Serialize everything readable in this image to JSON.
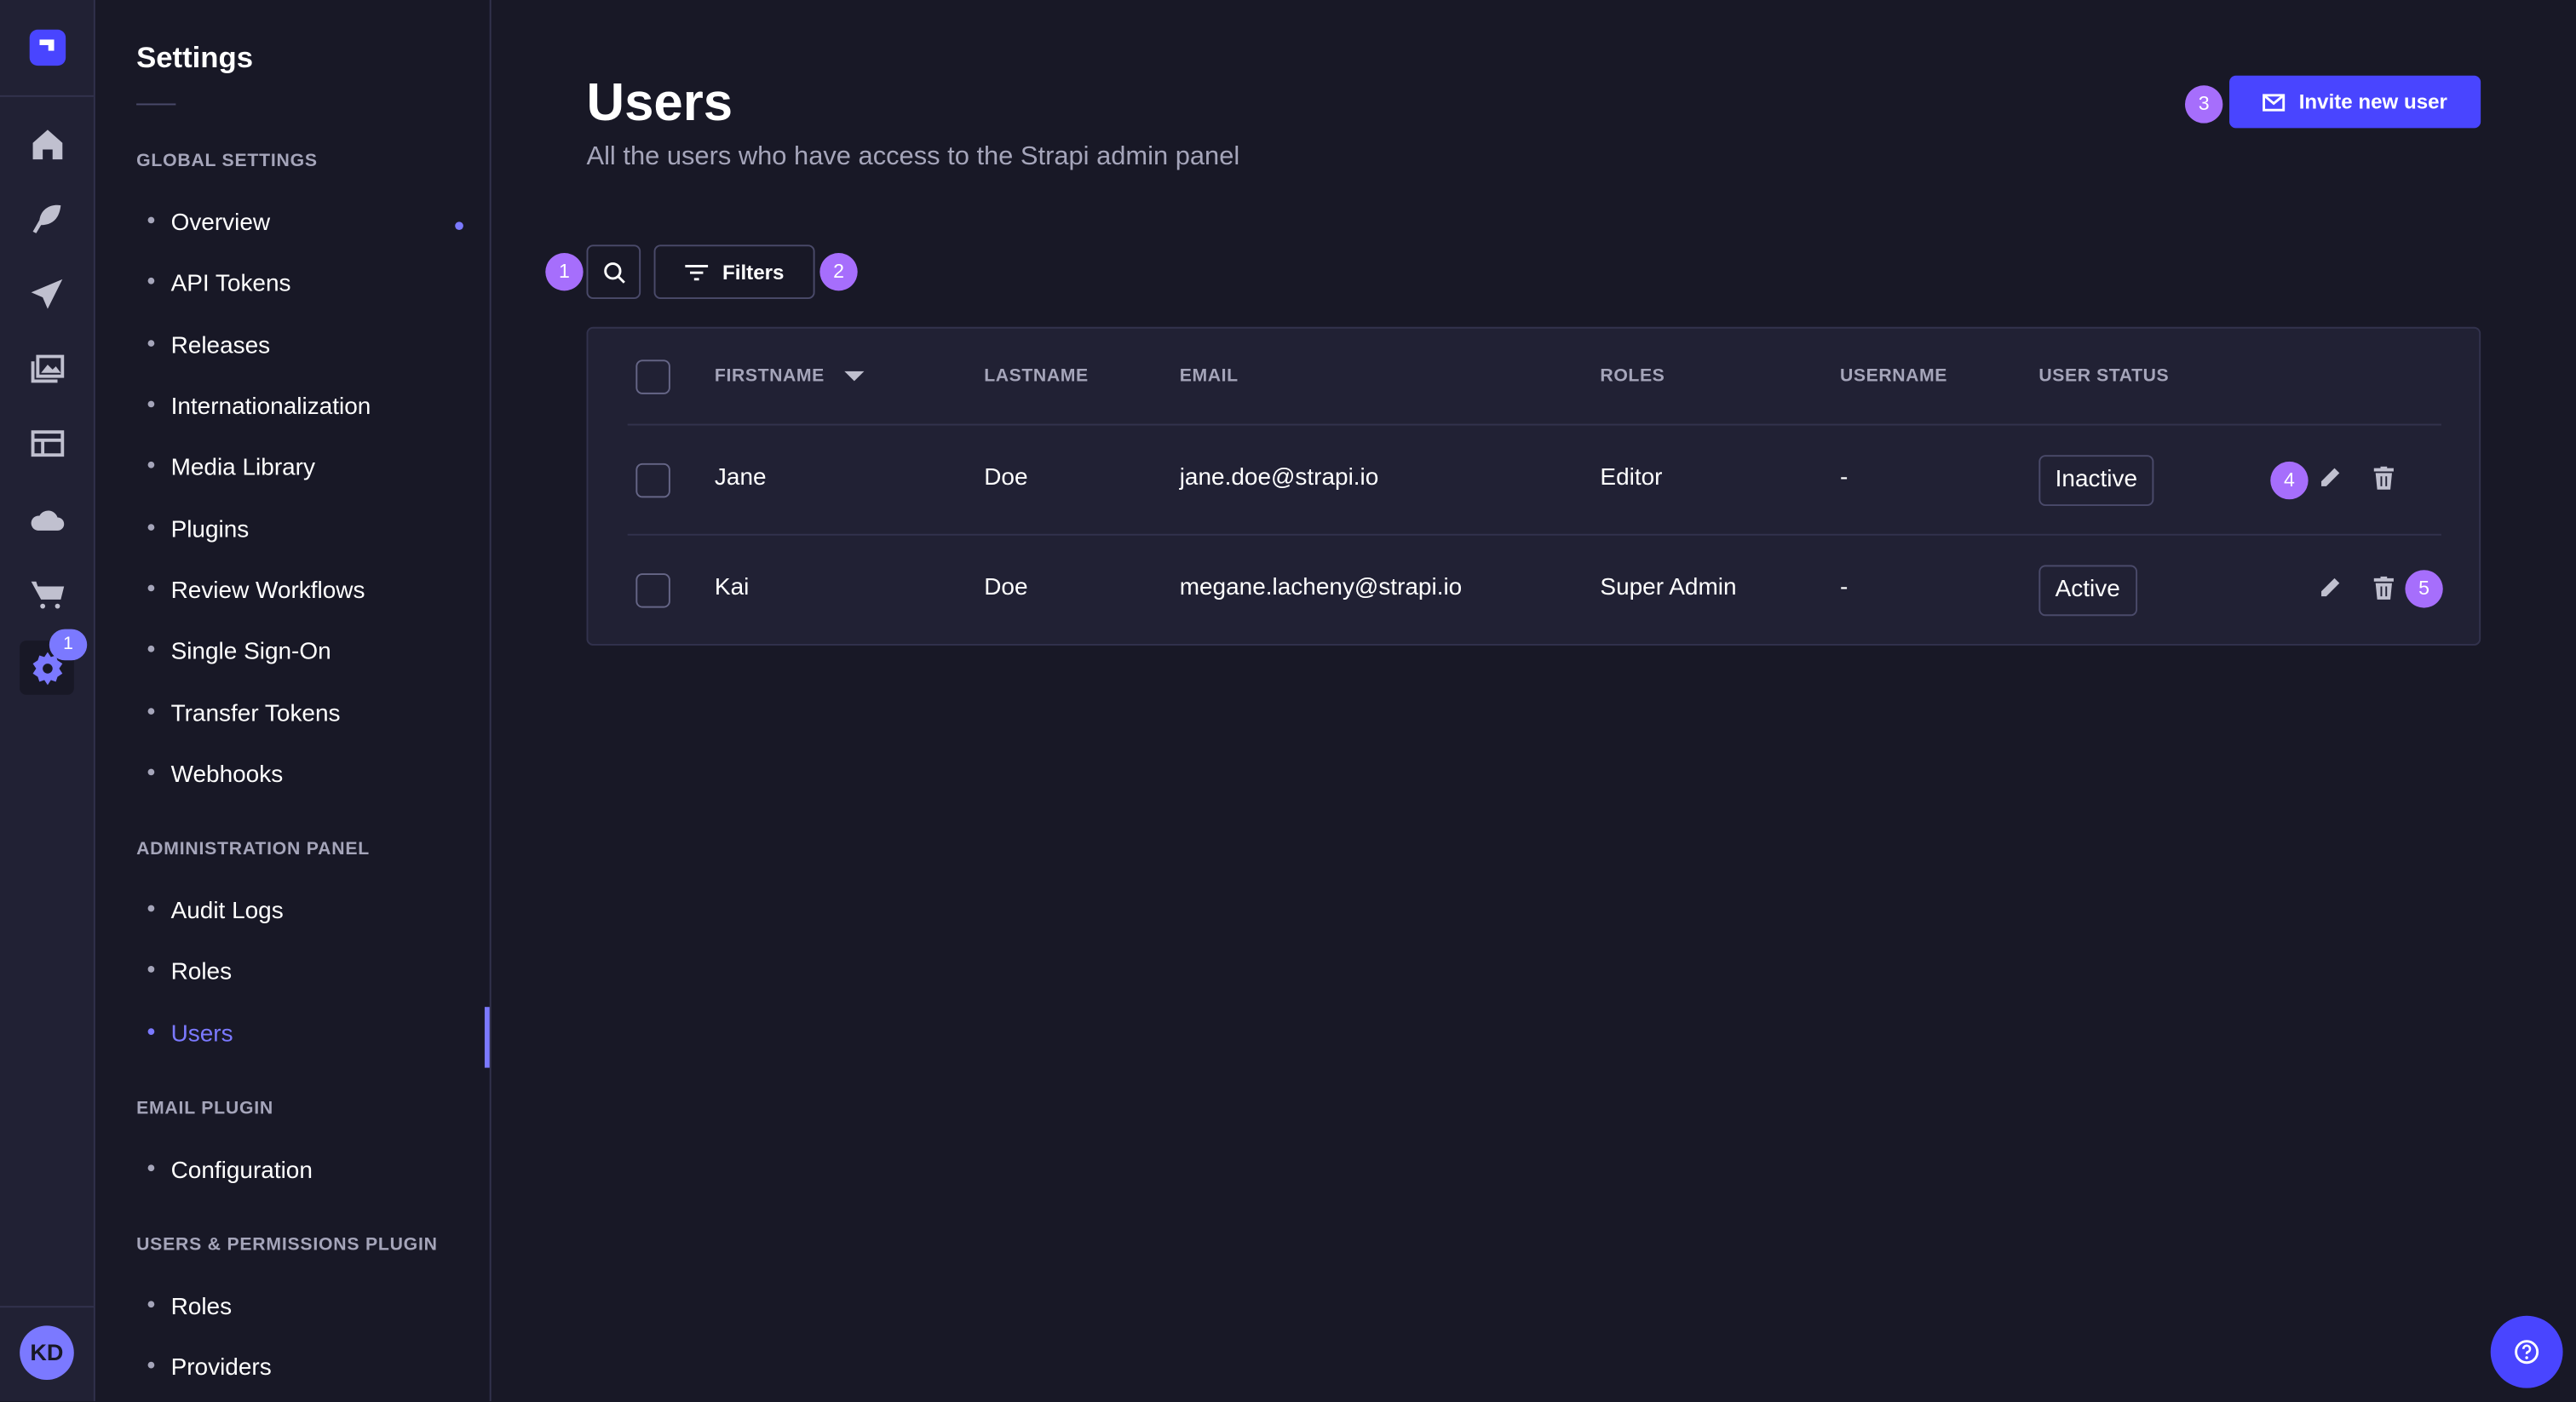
{
  "nav": {
    "icons": [
      "home-icon",
      "feather-icon",
      "paper-plane-icon",
      "media-icon",
      "layout-icon",
      "cloud-icon",
      "cart-icon",
      "gear-icon"
    ],
    "settings_badge": "1",
    "avatar": "KD"
  },
  "sidebar": {
    "title": "Settings",
    "sections": [
      {
        "label": "GLOBAL SETTINGS",
        "items": [
          "Overview",
          "API Tokens",
          "Releases",
          "Internationalization",
          "Media Library",
          "Plugins",
          "Review Workflows",
          "Single Sign-On",
          "Transfer Tokens",
          "Webhooks"
        ]
      },
      {
        "label": "ADMINISTRATION PANEL",
        "items": [
          "Audit Logs",
          "Roles",
          "Users"
        ]
      },
      {
        "label": "EMAIL PLUGIN",
        "items": [
          "Configuration"
        ]
      },
      {
        "label": "USERS & PERMISSIONS PLUGIN",
        "items": [
          "Roles",
          "Providers"
        ]
      }
    ],
    "active": "Users"
  },
  "header": {
    "title": "Users",
    "subtitle": "All the users who have access to the Strapi admin panel",
    "invite_label": "Invite new user"
  },
  "toolbar": {
    "filters_label": "Filters"
  },
  "markers": [
    "1",
    "2",
    "3",
    "4",
    "5"
  ],
  "table": {
    "columns": [
      "FIRSTNAME",
      "LASTNAME",
      "EMAIL",
      "ROLES",
      "USERNAME",
      "USER STATUS"
    ],
    "rows": [
      {
        "firstname": "Jane",
        "lastname": "Doe",
        "email": "jane.doe@strapi.io",
        "roles": "Editor",
        "username": "-",
        "status": "Inactive"
      },
      {
        "firstname": "Kai",
        "lastname": "Doe",
        "email": "megane.lacheny@strapi.io",
        "roles": "Super Admin",
        "username": "-",
        "status": "Active"
      }
    ]
  },
  "colors": {
    "primary": "#4945ff",
    "accent": "#7b79ff",
    "marker": "#a66efc",
    "background": "#181826"
  }
}
